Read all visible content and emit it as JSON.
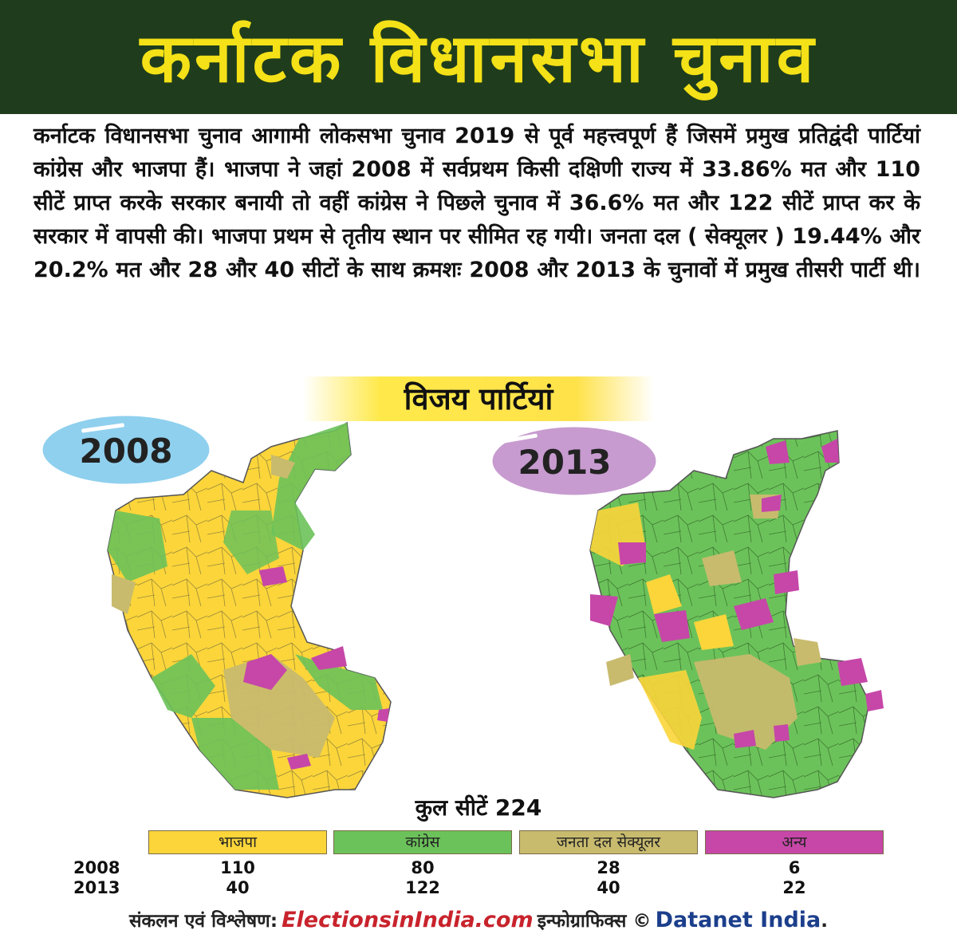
{
  "title": "कर्नाटक विधानसभा चुनाव",
  "intro_text": "कर्नाटक विधानसभा चुनाव आगामी लोकसभा चुनाव 2019 से पूर्व महत्त्वपूर्ण हैं जिसमें प्रमुख प्रतिद्वंदी पार्टियां कांग्रेस और भाजपा हैं। भाजपा ने जहां 2008 में सर्वप्रथम किसी दक्षिणी राज्य में 33.86% मत और 110 सीटें प्राप्त करके सरकार बनायी तो वहीं कांग्रेस ने पिछले चुनाव में 36.6% मत और 122 सीटें प्राप्त कर के सरकार में वापसी की। भाजपा प्रथम से तृतीय स्थान पर सीमित रह गयी। जनता दल ( सेक्यूलर ) 19.44% और 20.2% मत और 28 और 40 सीटों के साथ क्रमशः 2008 और 2013 के चुनावों में प्रमुख तीसरी पार्टी थी।",
  "subheading": "विजय पार्टियां",
  "maps": [
    {
      "year_label": "2008",
      "badge_color": "#8fd0ee"
    },
    {
      "year_label": "2013",
      "badge_color": "#c79bd0"
    }
  ],
  "total_seats_label": "कुल सीटें 224",
  "colors": {
    "bjp": "#fbd53a",
    "congress": "#6cc25a",
    "jds": "#c8bb6e",
    "others": "#c647a8",
    "banner": "#1f3d1c",
    "title_yellow": "#f4e117"
  },
  "parties": [
    {
      "name": "भाजपा",
      "color": "#fbd53a"
    },
    {
      "name": "कांग्रेस",
      "color": "#6cc25a"
    },
    {
      "name": "जनता दल सेक्यूलर",
      "color": "#c8bb6e"
    },
    {
      "name": "अन्य",
      "color": "#c647a8"
    }
  ],
  "results": [
    {
      "year": "2008",
      "values": [
        "110",
        "80",
        "28",
        "6"
      ]
    },
    {
      "year": "2013",
      "values": [
        "40",
        "122",
        "40",
        "22"
      ]
    }
  ],
  "footer": {
    "prefix": "संकलन एवं विश्लेषण:",
    "brand1": "ElectionsinIndia.com",
    "middle": "इन्फोग्राफिक्स ©",
    "brand2": "Datanet India",
    "suffix": "."
  }
}
